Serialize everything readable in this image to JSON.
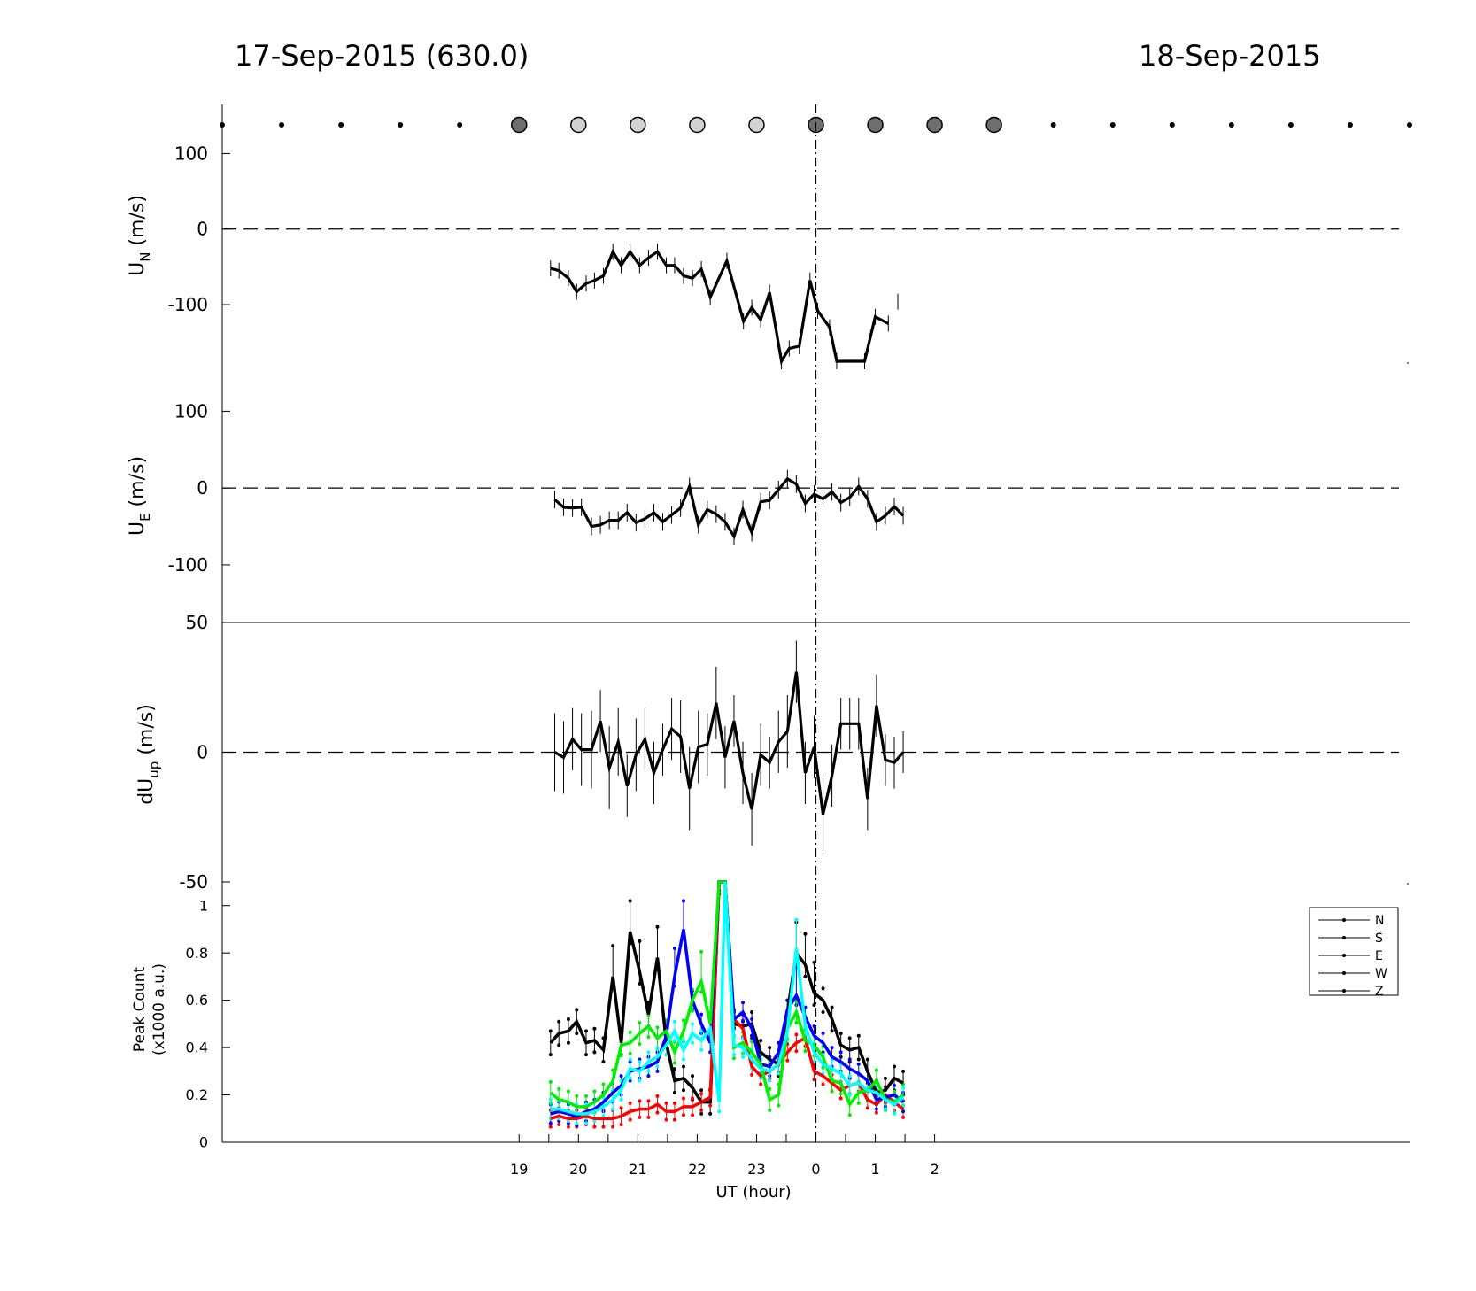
{
  "header": {
    "left_title": "17-Sep-2015 (630.0)",
    "right_title": "18-Sep-2015"
  },
  "chart_data": [
    {
      "type": "scatter",
      "name": "moon-phase-dots",
      "x": [
        14,
        15,
        16,
        17,
        18,
        19,
        20,
        21,
        22,
        23,
        24,
        25,
        26,
        27,
        28,
        29,
        30,
        31,
        32,
        33,
        34
      ],
      "marker": [
        "small",
        "small",
        "small",
        "small",
        "small",
        "dark",
        "light",
        "light",
        "light",
        "light",
        "dark",
        "dark",
        "dark",
        "dark",
        "small",
        "small",
        "small",
        "small",
        "small",
        "small",
        "small"
      ],
      "colors": {
        "dark": "#6e6e6e",
        "light": "#d2d2d2",
        "small": "#000000"
      }
    },
    {
      "type": "line",
      "ylabel": "U_N (m/s)",
      "ylabel_main": "U",
      "ylabel_sub": "N",
      "ylabel_unit": "(m/s)",
      "yticks": [
        100,
        0,
        -100
      ],
      "ylim": [
        -175,
        165
      ],
      "x": [
        19.53,
        19.67,
        19.83,
        19.97,
        20.13,
        20.27,
        20.42,
        20.58,
        20.72,
        20.87,
        21.03,
        21.18,
        21.33,
        21.48,
        21.62,
        21.77,
        21.92,
        22.07,
        22.22,
        22.5,
        22.78,
        22.92,
        23.07,
        23.22,
        23.42,
        23.55,
        23.72,
        23.9,
        24.03,
        24.23,
        24.35,
        24.82,
        25.0,
        25.22,
        25.38
      ],
      "y": [
        -52,
        -55,
        -65,
        -83,
        -72,
        -68,
        -62,
        -30,
        -48,
        -30,
        -48,
        -38,
        -30,
        -48,
        -48,
        -62,
        -65,
        -53,
        -90,
        -42,
        -122,
        -104,
        -120,
        -84,
        -175,
        -158,
        -155,
        -68,
        -108,
        -130,
        -175,
        -175,
        -116,
        -125,
        -96
      ],
      "gaps_after_index": [
        33
      ]
    },
    {
      "type": "line",
      "ylabel": "U_E (m/s)",
      "ylabel_main": "U",
      "ylabel_sub": "E",
      "ylabel_unit": "(m/s)",
      "yticks": [
        100,
        0,
        -100
      ],
      "ylim": [
        -175,
        165
      ],
      "x": [
        19.6,
        19.75,
        19.9,
        20.05,
        20.22,
        20.37,
        20.52,
        20.67,
        20.82,
        20.97,
        21.12,
        21.27,
        21.42,
        21.57,
        21.72,
        21.87,
        22.02,
        22.17,
        22.32,
        22.47,
        22.62,
        22.77,
        22.92,
        23.07,
        23.22,
        23.37,
        23.52,
        23.67,
        23.82,
        23.97,
        24.12,
        24.27,
        24.42,
        24.57,
        24.72,
        24.87,
        25.02,
        25.17,
        25.32,
        25.47
      ],
      "y": [
        -15,
        -25,
        -26,
        -25,
        -50,
        -48,
        -42,
        -42,
        -32,
        -45,
        -40,
        -32,
        -44,
        -35,
        -26,
        2,
        -48,
        -28,
        -34,
        -44,
        -63,
        -28,
        -58,
        -18,
        -16,
        -2,
        12,
        5,
        -20,
        -8,
        -14,
        -5,
        -19,
        -12,
        2,
        -14,
        -44,
        -36,
        -24,
        -36
      ]
    },
    {
      "type": "line",
      "ylabel": "dU_up (m/s)",
      "ylabel_main": "dU",
      "ylabel_sub": "up",
      "ylabel_unit": "(m/s)",
      "yticks": [
        50,
        0,
        -50
      ],
      "ylim": [
        -50,
        50
      ],
      "x": [
        19.6,
        19.75,
        19.9,
        20.05,
        20.22,
        20.37,
        20.52,
        20.67,
        20.82,
        20.97,
        21.12,
        21.27,
        21.42,
        21.57,
        21.72,
        21.87,
        22.02,
        22.17,
        22.32,
        22.47,
        22.62,
        22.77,
        22.92,
        23.07,
        23.22,
        23.37,
        23.52,
        23.67,
        23.82,
        23.97,
        24.12,
        24.27,
        24.42,
        24.57,
        24.72,
        24.87,
        25.02,
        25.17,
        25.32,
        25.47
      ],
      "y": [
        0,
        -2,
        5,
        1,
        1,
        12,
        -6,
        4,
        -13,
        -1,
        5,
        -8,
        1,
        9,
        6,
        -14,
        2,
        3,
        19,
        -2,
        12,
        -8,
        -22,
        -1,
        -4,
        4,
        8,
        31,
        -8,
        2,
        -24,
        -9,
        11,
        11,
        11,
        -18,
        18,
        -3,
        -4,
        0
      ],
      "err": [
        15,
        14,
        12,
        14,
        15,
        12,
        16,
        13,
        12,
        14,
        12,
        12,
        10,
        12,
        14,
        16,
        14,
        12,
        14,
        12,
        10,
        12,
        14,
        12,
        10,
        12,
        14,
        12,
        12,
        12,
        14,
        12,
        10,
        10,
        10,
        12,
        12,
        10,
        10,
        8
      ]
    },
    {
      "type": "line",
      "ylabel": "Peak Count (x1000 a.u.)",
      "ylabel_line1": "Peak Count",
      "ylabel_line2": "(x1000 a.u.)",
      "xlabel": "UT (hour)",
      "xticks": [
        19,
        20,
        21,
        22,
        23,
        0,
        1,
        2
      ],
      "yticks": [
        1,
        0.8,
        0.6,
        0.4,
        0.2,
        0
      ],
      "ylim": [
        0,
        1.1
      ],
      "legend": [
        "N",
        "S",
        "E",
        "W",
        "Z"
      ],
      "legend_position": "right",
      "x": [
        19.53,
        19.67,
        19.83,
        19.97,
        20.13,
        20.27,
        20.42,
        20.58,
        20.72,
        20.87,
        21.03,
        21.18,
        21.33,
        21.48,
        21.62,
        21.77,
        21.92,
        22.07,
        22.22,
        22.37,
        22.47,
        22.62,
        22.77,
        22.92,
        23.07,
        23.22,
        23.37,
        23.52,
        23.67,
        23.82,
        23.97,
        24.12,
        24.27,
        24.42,
        24.57,
        24.72,
        24.87,
        25.02,
        25.17,
        25.32,
        25.47
      ],
      "series": [
        {
          "color": "#000000",
          "values": [
            0.42,
            0.46,
            0.47,
            0.51,
            0.42,
            0.43,
            0.39,
            0.7,
            0.42,
            0.89,
            0.72,
            0.54,
            0.78,
            0.42,
            0.26,
            0.27,
            0.23,
            0.17,
            0.17,
            1.1,
            1.1,
            0.5,
            0.49,
            0.5,
            0.38,
            0.35,
            0.33,
            0.55,
            0.8,
            0.75,
            0.63,
            0.6,
            0.52,
            0.41,
            0.39,
            0.4,
            0.3,
            0.21,
            0.22,
            0.27,
            0.25
          ]
        },
        {
          "color": "#ff0000",
          "values": [
            0.1,
            0.11,
            0.1,
            0.1,
            0.11,
            0.1,
            0.1,
            0.1,
            0.11,
            0.13,
            0.14,
            0.14,
            0.16,
            0.13,
            0.13,
            0.15,
            0.15,
            0.17,
            0.19,
            1.1,
            1.1,
            0.52,
            0.48,
            0.32,
            0.28,
            0.3,
            0.33,
            0.38,
            0.42,
            0.44,
            0.3,
            0.28,
            0.25,
            0.22,
            0.24,
            0.25,
            0.18,
            0.16,
            0.2,
            0.17,
            0.14
          ]
        },
        {
          "color": "#0000ff",
          "values": [
            0.12,
            0.13,
            0.12,
            0.11,
            0.13,
            0.14,
            0.17,
            0.21,
            0.24,
            0.3,
            0.31,
            0.32,
            0.34,
            0.45,
            0.7,
            0.9,
            0.6,
            0.5,
            0.42,
            1.1,
            1.1,
            0.52,
            0.55,
            0.48,
            0.33,
            0.32,
            0.38,
            0.56,
            0.62,
            0.53,
            0.45,
            0.42,
            0.36,
            0.34,
            0.31,
            0.29,
            0.26,
            0.18,
            0.19,
            0.2,
            0.17
          ]
        },
        {
          "color": "#00ee00",
          "values": [
            0.21,
            0.18,
            0.17,
            0.15,
            0.15,
            0.17,
            0.2,
            0.26,
            0.41,
            0.42,
            0.46,
            0.49,
            0.44,
            0.47,
            0.38,
            0.47,
            0.6,
            0.68,
            0.5,
            1.1,
            1.1,
            0.4,
            0.42,
            0.38,
            0.33,
            0.18,
            0.2,
            0.48,
            0.55,
            0.43,
            0.41,
            0.36,
            0.26,
            0.25,
            0.16,
            0.21,
            0.22,
            0.26,
            0.18,
            0.17,
            0.2
          ]
        },
        {
          "color": "#00ffff",
          "values": [
            0.14,
            0.14,
            0.13,
            0.12,
            0.12,
            0.13,
            0.15,
            0.18,
            0.22,
            0.31,
            0.3,
            0.34,
            0.36,
            0.41,
            0.47,
            0.39,
            0.46,
            0.43,
            0.48,
            0.17,
            1.1,
            0.41,
            0.4,
            0.35,
            0.31,
            0.3,
            0.33,
            0.47,
            0.82,
            0.49,
            0.38,
            0.33,
            0.31,
            0.29,
            0.24,
            0.25,
            0.22,
            0.21,
            0.18,
            0.16,
            0.19
          ]
        }
      ]
    }
  ]
}
